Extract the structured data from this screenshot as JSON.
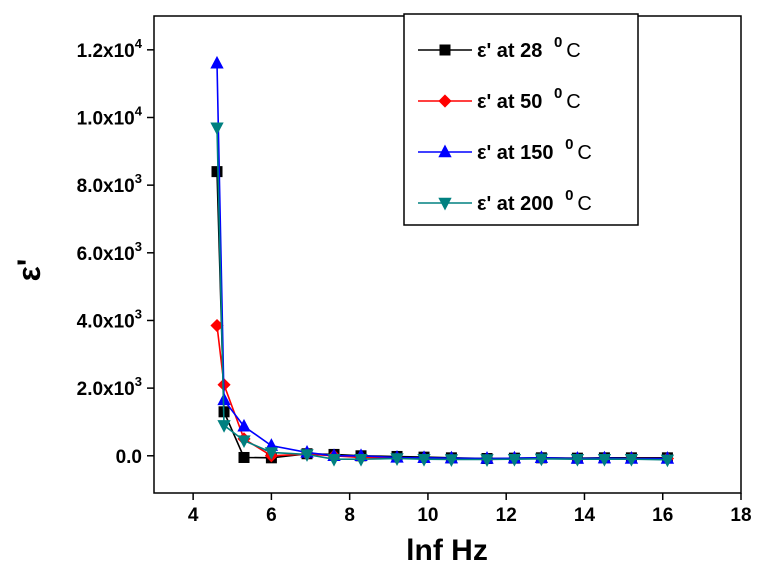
{
  "chart_data": {
    "type": "line",
    "xlabel": "lnf Hz",
    "ylabel": "ε'",
    "xlim": [
      3,
      18
    ],
    "ylim": [
      -1100,
      13000
    ],
    "xticks": [
      4,
      6,
      8,
      10,
      12,
      14,
      16,
      18
    ],
    "yticks": [
      {
        "value": 0,
        "mantissa": "0.0",
        "exp": ""
      },
      {
        "value": 2000,
        "mantissa": "2.0x10",
        "exp": "3"
      },
      {
        "value": 4000,
        "mantissa": "4.0x10",
        "exp": "3"
      },
      {
        "value": 6000,
        "mantissa": "6.0x10",
        "exp": "3"
      },
      {
        "value": 8000,
        "mantissa": "8.0x10",
        "exp": "3"
      },
      {
        "value": 10000,
        "mantissa": "1.0x10",
        "exp": "4"
      },
      {
        "value": 12000,
        "mantissa": "1.2x10",
        "exp": "4"
      }
    ],
    "legend_position": "top-right",
    "grid": false,
    "series": [
      {
        "name": "ε' at 28 ",
        "name_sup": "0",
        "name_unit": "C",
        "color": "#000000",
        "marker": "square",
        "x": [
          4.61,
          4.79,
          5.3,
          6.0,
          6.91,
          7.6,
          8.29,
          9.21,
          9.9,
          10.6,
          11.51,
          12.21,
          12.9,
          13.82,
          14.51,
          15.2,
          16.12
        ],
        "y": [
          8400,
          1300,
          -50,
          -60,
          60,
          40,
          0,
          -20,
          -40,
          -60,
          -80,
          -70,
          -60,
          -70,
          -60,
          -60,
          -60
        ]
      },
      {
        "name": "ε' at 50 ",
        "name_sup": "0",
        "name_unit": "C",
        "color": "#ff0000",
        "marker": "diamond",
        "x": [
          4.61,
          4.79,
          5.3,
          6.0,
          6.91,
          7.6,
          8.29,
          9.21,
          9.9,
          10.6,
          11.51,
          12.21,
          12.9,
          13.82,
          14.51,
          15.2,
          16.12
        ],
        "y": [
          3850,
          2100,
          500,
          0,
          50,
          0,
          -50,
          -60,
          -80,
          -90,
          -90,
          -80,
          -80,
          -90,
          -80,
          -80,
          -80
        ]
      },
      {
        "name": "ε' at 150 ",
        "name_sup": "0",
        "name_unit": "C",
        "color": "#0000ff",
        "marker": "triangle-up",
        "x": [
          4.61,
          4.79,
          5.3,
          6.0,
          6.91,
          7.6,
          8.29,
          9.21,
          9.9,
          10.6,
          11.51,
          12.21,
          12.9,
          13.82,
          14.51,
          15.2,
          16.12
        ],
        "y": [
          11600,
          1650,
          870,
          300,
          100,
          0,
          0,
          -50,
          -60,
          -70,
          -80,
          -70,
          -60,
          -80,
          -70,
          -80,
          -80
        ]
      },
      {
        "name": "ε' at 200 ",
        "name_sup": "0",
        "name_unit": "C",
        "color": "#008080",
        "marker": "triangle-down",
        "x": [
          4.61,
          4.79,
          5.3,
          6.0,
          6.91,
          7.6,
          8.29,
          9.21,
          9.9,
          10.6,
          11.51,
          12.21,
          12.9,
          13.82,
          14.51,
          15.2,
          16.12
        ],
        "y": [
          9700,
          900,
          450,
          100,
          40,
          -100,
          -100,
          -80,
          -100,
          -110,
          -110,
          -100,
          -90,
          -100,
          -100,
          -100,
          -120
        ]
      }
    ]
  }
}
